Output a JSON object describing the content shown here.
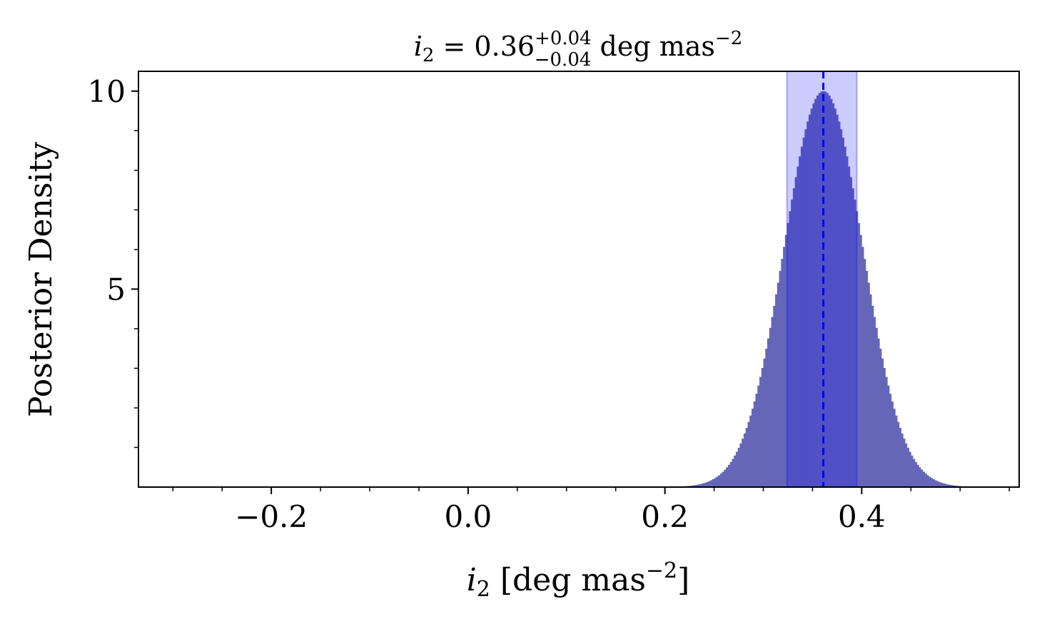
{
  "chart_data": {
    "type": "bar",
    "title": {
      "var": "i",
      "sub": "2",
      "eq": " = 0.36",
      "sup": "+0.04",
      "lo": "−0.04",
      "unit": " deg mas",
      "unit_exp": "−2"
    },
    "xlabel": {
      "var": "i",
      "sub": "2",
      "unit_open": " [deg mas",
      "unit_exp": "−2",
      "unit_close": "]"
    },
    "ylabel": "Posterior Density",
    "xlim": [
      -0.335,
      0.56
    ],
    "ylim": [
      0,
      10.5
    ],
    "x_ticks": [
      {
        "value": -0.2,
        "label": "−0.2"
      },
      {
        "value": 0.0,
        "label": "0.0"
      },
      {
        "value": 0.2,
        "label": "0.2"
      },
      {
        "value": 0.4,
        "label": "0.4"
      }
    ],
    "x_minor_step": 0.05,
    "y_ticks": [
      {
        "value": 5,
        "label": "5"
      },
      {
        "value": 10,
        "label": "10"
      }
    ],
    "y_minor_step": 1,
    "histogram": {
      "mean": 0.361,
      "sigma": 0.04,
      "peak": 10.0,
      "bin_width": 0.002,
      "x_start": 0.2,
      "x_end": 0.52
    },
    "median": 0.361,
    "ci": [
      0.324,
      0.395
    ],
    "colors": {
      "hist": "#6666b8",
      "band": "#0000ff",
      "band_opacity": 0.2,
      "median_line": "#0000ee"
    },
    "grid": false,
    "legend": "none"
  }
}
